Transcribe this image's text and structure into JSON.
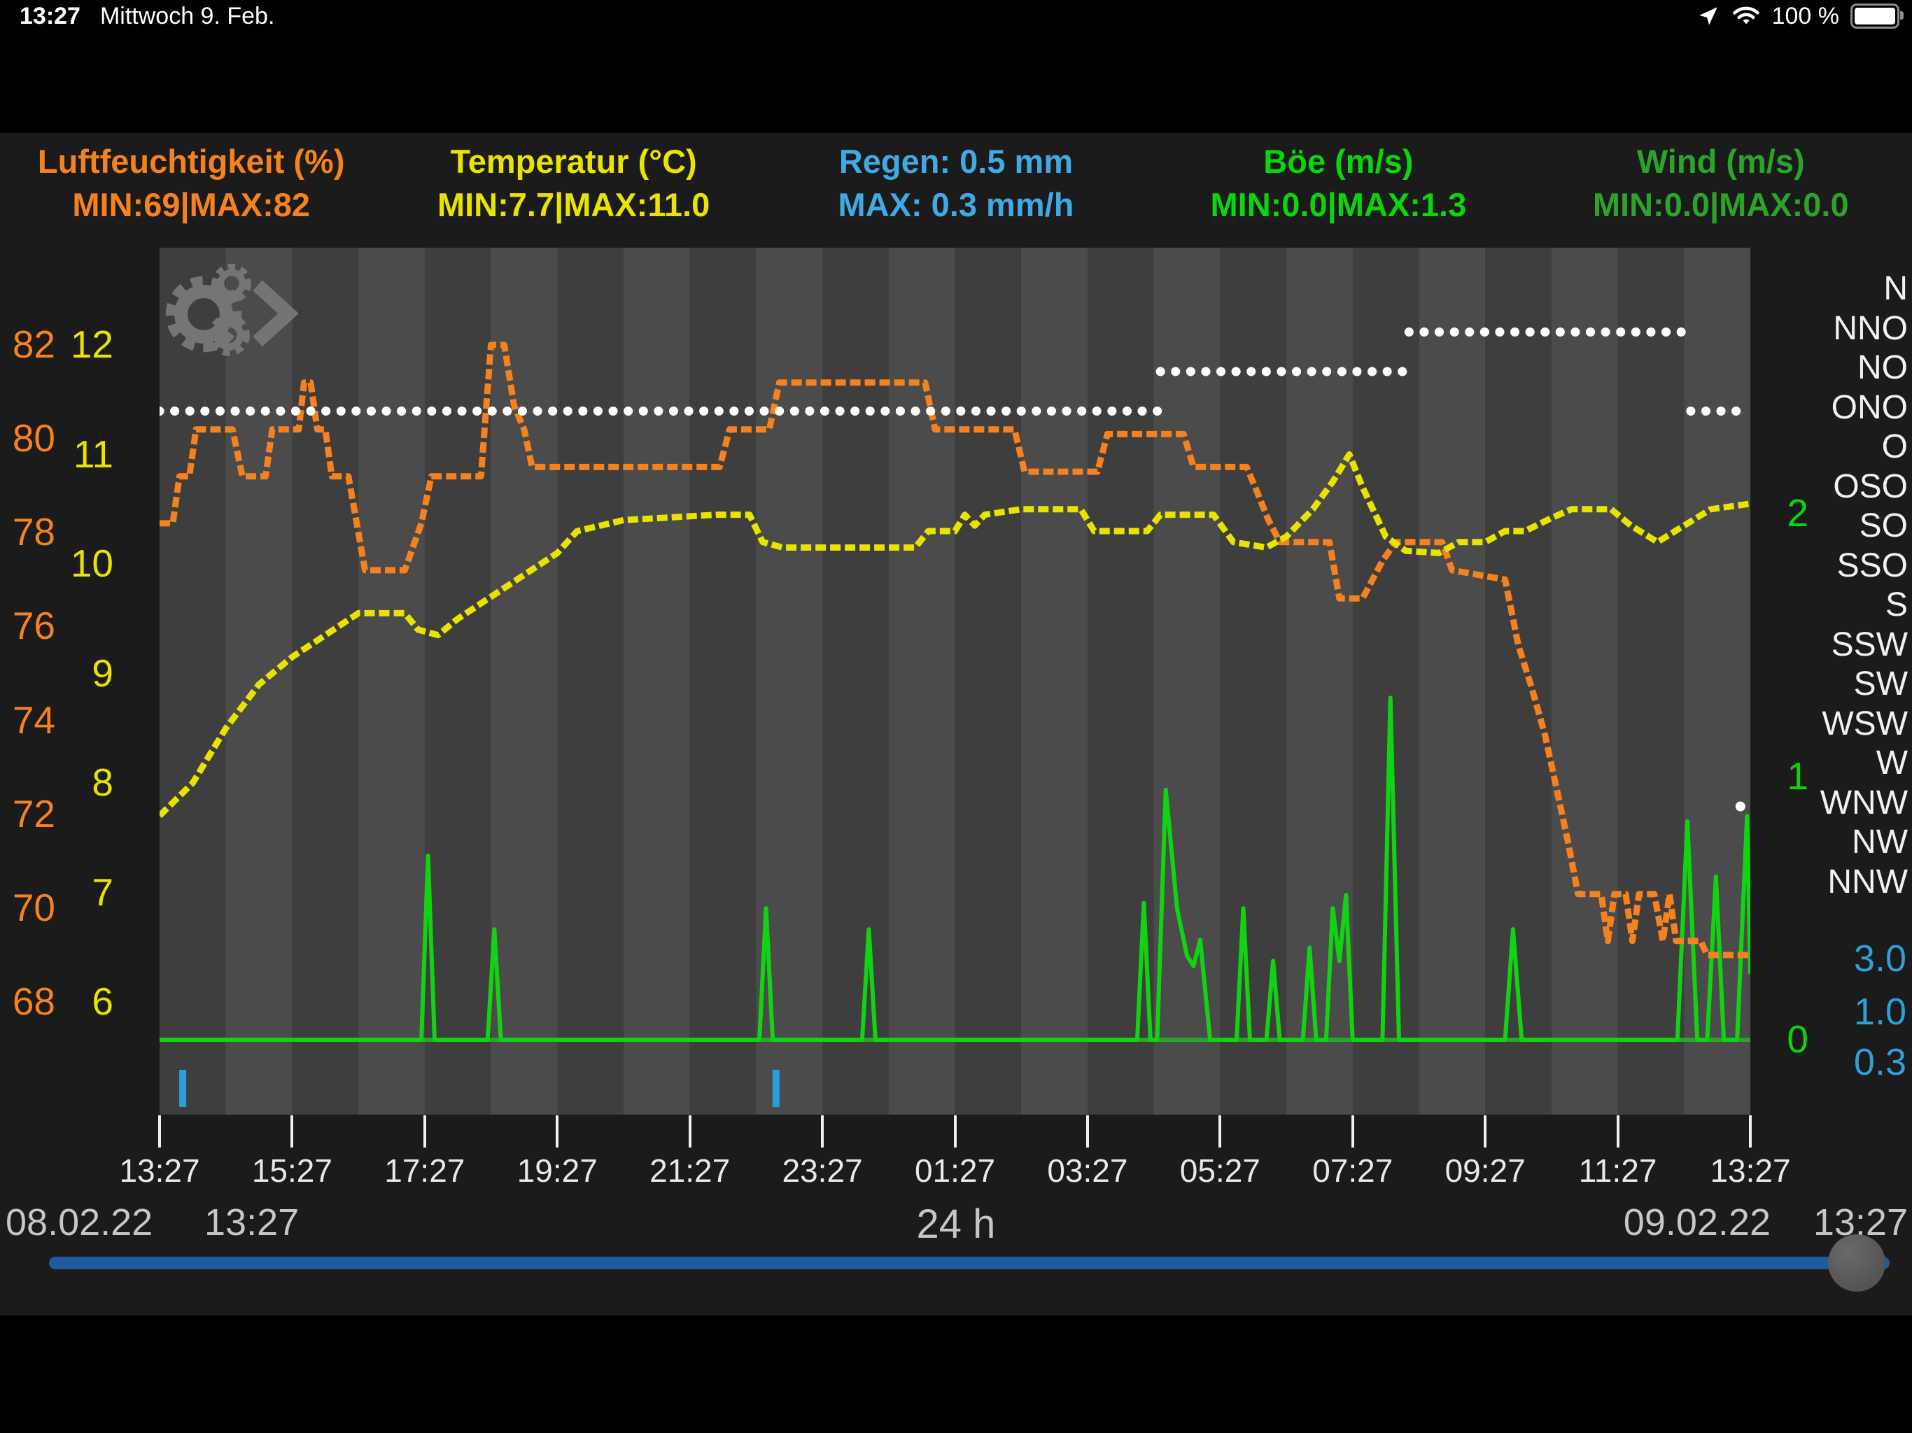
{
  "status_bar": {
    "time": "13:27",
    "date": "Mittwoch 9. Feb.",
    "battery_percent": "100 %",
    "icons": [
      "location",
      "wifi",
      "battery"
    ]
  },
  "legend": [
    {
      "title": "Luftfeuchtigkeit (%)",
      "sub": "MIN:69|MAX:82",
      "color": "#f5821f"
    },
    {
      "title": "Temperatur (°C)",
      "sub": "MIN:7.7|MAX:11.0",
      "color": "#e8e400"
    },
    {
      "title": "Regen: 0.5 mm",
      "sub": "MAX: 0.3 mm/h",
      "color": "#41aae4"
    },
    {
      "title": "Böe (m/s)",
      "sub": "MIN:0.0|MAX:1.3",
      "color": "#0bd60b"
    },
    {
      "title": "Wind (m/s)",
      "sub": "MIN:0.0|MAX:0.0",
      "color": "#2aa52a"
    }
  ],
  "axes": {
    "humidity": {
      "labels": [
        "82",
        "80",
        "78",
        "76",
        "74",
        "72",
        "70",
        "68"
      ],
      "color": "#f5821f"
    },
    "temperature": {
      "labels": [
        "12",
        "11",
        "10",
        "9",
        "8",
        "7",
        "6"
      ],
      "color": "#e8e400"
    },
    "wind_directions": [
      "N",
      "NNO",
      "NO",
      "ONO",
      "O",
      "OSO",
      "SO",
      "SSO",
      "S",
      "SSW",
      "SW",
      "WSW",
      "W",
      "WNW",
      "NW",
      "NNW"
    ],
    "gust_scale": {
      "labels": [
        "2",
        "1",
        "0"
      ],
      "color": "#0bd60b"
    },
    "rain_scale": {
      "labels": [
        "3.0",
        "1.0",
        "0.3"
      ],
      "color": "#2f9fd8"
    }
  },
  "x_axis": {
    "labels": [
      "13:27",
      "15:27",
      "17:27",
      "19:27",
      "21:27",
      "23:27",
      "01:27",
      "03:27",
      "05:27",
      "07:27",
      "09:27",
      "11:27",
      "13:27"
    ]
  },
  "footer": {
    "start_date": "08.02.22",
    "start_time": "13:27",
    "range": "24 h",
    "end_date": "09.02.22",
    "end_time": "13:27"
  },
  "chart_data": {
    "type": "line",
    "title": "Weather station 24 h history",
    "x_unit": "hours since 08.02.22 13:27",
    "x_range": [
      0,
      24
    ],
    "grid": "vertical hourly bands",
    "series": [
      {
        "name": "Luftfeuchtigkeit",
        "unit": "%",
        "color": "#f5821f",
        "ymin": 68,
        "ymax": 82,
        "min": 69,
        "max": 82,
        "points": [
          [
            0,
            78.2
          ],
          [
            0.2,
            78.2
          ],
          [
            0.3,
            79.2
          ],
          [
            0.45,
            79.2
          ],
          [
            0.55,
            80.2
          ],
          [
            1.1,
            80.2
          ],
          [
            1.25,
            79.2
          ],
          [
            1.6,
            79.2
          ],
          [
            1.7,
            80.2
          ],
          [
            2.1,
            80.2
          ],
          [
            2.18,
            81.2
          ],
          [
            2.28,
            81.2
          ],
          [
            2.38,
            80.2
          ],
          [
            2.5,
            80.2
          ],
          [
            2.6,
            79.2
          ],
          [
            2.85,
            79.2
          ],
          [
            3.1,
            77.2
          ],
          [
            3.7,
            77.2
          ],
          [
            3.95,
            78.2
          ],
          [
            4.1,
            79.2
          ],
          [
            4.85,
            79.2
          ],
          [
            5.0,
            82.0
          ],
          [
            5.2,
            82.0
          ],
          [
            5.35,
            80.7
          ],
          [
            5.5,
            80.2
          ],
          [
            5.62,
            79.4
          ],
          [
            8.45,
            79.4
          ],
          [
            8.6,
            80.2
          ],
          [
            9.2,
            80.2
          ],
          [
            9.35,
            81.2
          ],
          [
            11.55,
            81.2
          ],
          [
            11.7,
            80.2
          ],
          [
            12.9,
            80.2
          ],
          [
            13.05,
            79.3
          ],
          [
            14.15,
            79.3
          ],
          [
            14.3,
            80.1
          ],
          [
            15.45,
            80.1
          ],
          [
            15.6,
            79.4
          ],
          [
            16.4,
            79.4
          ],
          [
            16.55,
            78.9
          ],
          [
            16.72,
            78.3
          ],
          [
            16.9,
            77.8
          ],
          [
            17.65,
            77.8
          ],
          [
            17.8,
            76.6
          ],
          [
            18.15,
            76.6
          ],
          [
            18.45,
            77.4
          ],
          [
            18.65,
            77.8
          ],
          [
            19.35,
            77.8
          ],
          [
            19.5,
            77.2
          ],
          [
            20.3,
            77.0
          ],
          [
            20.5,
            75.6
          ],
          [
            20.7,
            74.7
          ],
          [
            20.9,
            73.7
          ],
          [
            21.1,
            72.4
          ],
          [
            21.25,
            71.4
          ],
          [
            21.4,
            70.3
          ],
          [
            21.75,
            70.3
          ],
          [
            21.85,
            69.3
          ],
          [
            21.95,
            70.3
          ],
          [
            22.12,
            70.3
          ],
          [
            22.22,
            69.3
          ],
          [
            22.32,
            70.3
          ],
          [
            22.55,
            70.3
          ],
          [
            22.68,
            69.3
          ],
          [
            22.78,
            70.3
          ],
          [
            22.88,
            69.3
          ],
          [
            23.25,
            69.3
          ],
          [
            23.35,
            69.0
          ],
          [
            24,
            69.0
          ]
        ]
      },
      {
        "name": "Temperatur",
        "unit": "°C",
        "color": "#e8e400",
        "ymin": 6,
        "ymax": 12,
        "min": 7.7,
        "max": 11.0,
        "points": [
          [
            0,
            7.7
          ],
          [
            0.5,
            8.0
          ],
          [
            1.0,
            8.5
          ],
          [
            1.5,
            8.9
          ],
          [
            2.0,
            9.15
          ],
          [
            2.5,
            9.35
          ],
          [
            3.0,
            9.55
          ],
          [
            3.7,
            9.55
          ],
          [
            3.9,
            9.4
          ],
          [
            4.2,
            9.35
          ],
          [
            4.5,
            9.5
          ],
          [
            5.0,
            9.7
          ],
          [
            5.5,
            9.9
          ],
          [
            6.0,
            10.1
          ],
          [
            6.3,
            10.3
          ],
          [
            7.0,
            10.4
          ],
          [
            8.4,
            10.45
          ],
          [
            8.9,
            10.45
          ],
          [
            9.1,
            10.2
          ],
          [
            9.4,
            10.15
          ],
          [
            11.4,
            10.15
          ],
          [
            11.6,
            10.3
          ],
          [
            12.0,
            10.3
          ],
          [
            12.15,
            10.45
          ],
          [
            12.3,
            10.35
          ],
          [
            12.45,
            10.45
          ],
          [
            13.0,
            10.5
          ],
          [
            13.9,
            10.5
          ],
          [
            14.1,
            10.3
          ],
          [
            14.9,
            10.3
          ],
          [
            15.1,
            10.45
          ],
          [
            15.9,
            10.45
          ],
          [
            16.2,
            10.2
          ],
          [
            16.7,
            10.15
          ],
          [
            17.0,
            10.25
          ],
          [
            17.4,
            10.5
          ],
          [
            17.7,
            10.75
          ],
          [
            17.95,
            11.0
          ],
          [
            18.15,
            10.7
          ],
          [
            18.5,
            10.25
          ],
          [
            18.8,
            10.12
          ],
          [
            19.3,
            10.1
          ],
          [
            19.6,
            10.2
          ],
          [
            20.0,
            10.2
          ],
          [
            20.3,
            10.3
          ],
          [
            20.6,
            10.3
          ],
          [
            21.0,
            10.42
          ],
          [
            21.3,
            10.5
          ],
          [
            21.9,
            10.5
          ],
          [
            22.2,
            10.35
          ],
          [
            22.6,
            10.2
          ],
          [
            23.0,
            10.35
          ],
          [
            23.4,
            10.5
          ],
          [
            24,
            10.55
          ]
        ]
      },
      {
        "name": "Böe",
        "unit": "m/s",
        "color": "#12d312",
        "ymin": 0,
        "ymax": 2,
        "min": 0.0,
        "max": 1.3,
        "points": [
          [
            0,
            0
          ],
          [
            3.95,
            0
          ],
          [
            4.05,
            0.7
          ],
          [
            4.15,
            0
          ],
          [
            4.95,
            0
          ],
          [
            5.05,
            0.42
          ],
          [
            5.15,
            0
          ],
          [
            9.05,
            0
          ],
          [
            9.15,
            0.5
          ],
          [
            9.25,
            0
          ],
          [
            10.6,
            0
          ],
          [
            10.7,
            0.42
          ],
          [
            10.8,
            0
          ],
          [
            14.75,
            0
          ],
          [
            14.85,
            0.52
          ],
          [
            14.95,
            0
          ],
          [
            15.05,
            0
          ],
          [
            15.18,
            0.95
          ],
          [
            15.35,
            0.5
          ],
          [
            15.5,
            0.32
          ],
          [
            15.6,
            0.28
          ],
          [
            15.7,
            0.38
          ],
          [
            15.85,
            0
          ],
          [
            16.25,
            0
          ],
          [
            16.35,
            0.5
          ],
          [
            16.45,
            0
          ],
          [
            16.7,
            0
          ],
          [
            16.8,
            0.3
          ],
          [
            16.9,
            0
          ],
          [
            17.25,
            0
          ],
          [
            17.35,
            0.35
          ],
          [
            17.45,
            0
          ],
          [
            17.6,
            0
          ],
          [
            17.7,
            0.5
          ],
          [
            17.8,
            0.3
          ],
          [
            17.9,
            0.55
          ],
          [
            18.0,
            0
          ],
          [
            18.45,
            0
          ],
          [
            18.57,
            1.3
          ],
          [
            18.7,
            0
          ],
          [
            20.3,
            0
          ],
          [
            20.42,
            0.42
          ],
          [
            20.55,
            0
          ],
          [
            22.9,
            0
          ],
          [
            23.05,
            0.83
          ],
          [
            23.2,
            0
          ],
          [
            23.35,
            0
          ],
          [
            23.48,
            0.62
          ],
          [
            23.6,
            0
          ],
          [
            23.8,
            0
          ],
          [
            23.95,
            0.85
          ],
          [
            24,
            0.25
          ]
        ]
      },
      {
        "name": "Wind",
        "unit": "m/s",
        "color": "#2aa52a",
        "ymin": 0,
        "ymax": 2,
        "min": 0.0,
        "max": 0.0,
        "points": [
          [
            0,
            0
          ],
          [
            24,
            0
          ]
        ]
      }
    ],
    "wind_direction": {
      "color": "#ffffff",
      "segments": [
        {
          "dir": "ONO",
          "from": 0,
          "to": 15.1
        },
        {
          "dir": "NO",
          "from": 15.1,
          "to": 18.85
        },
        {
          "dir": "NNO",
          "from": 18.85,
          "to": 23.05
        },
        {
          "dir": "ONO",
          "from": 23.1,
          "to": 23.85
        }
      ],
      "end_dot": {
        "dir": "WNW",
        "at": 23.85
      }
    },
    "rain_events": {
      "color": "#2b9fdd",
      "at_hours": [
        0.35,
        9.3
      ]
    }
  }
}
